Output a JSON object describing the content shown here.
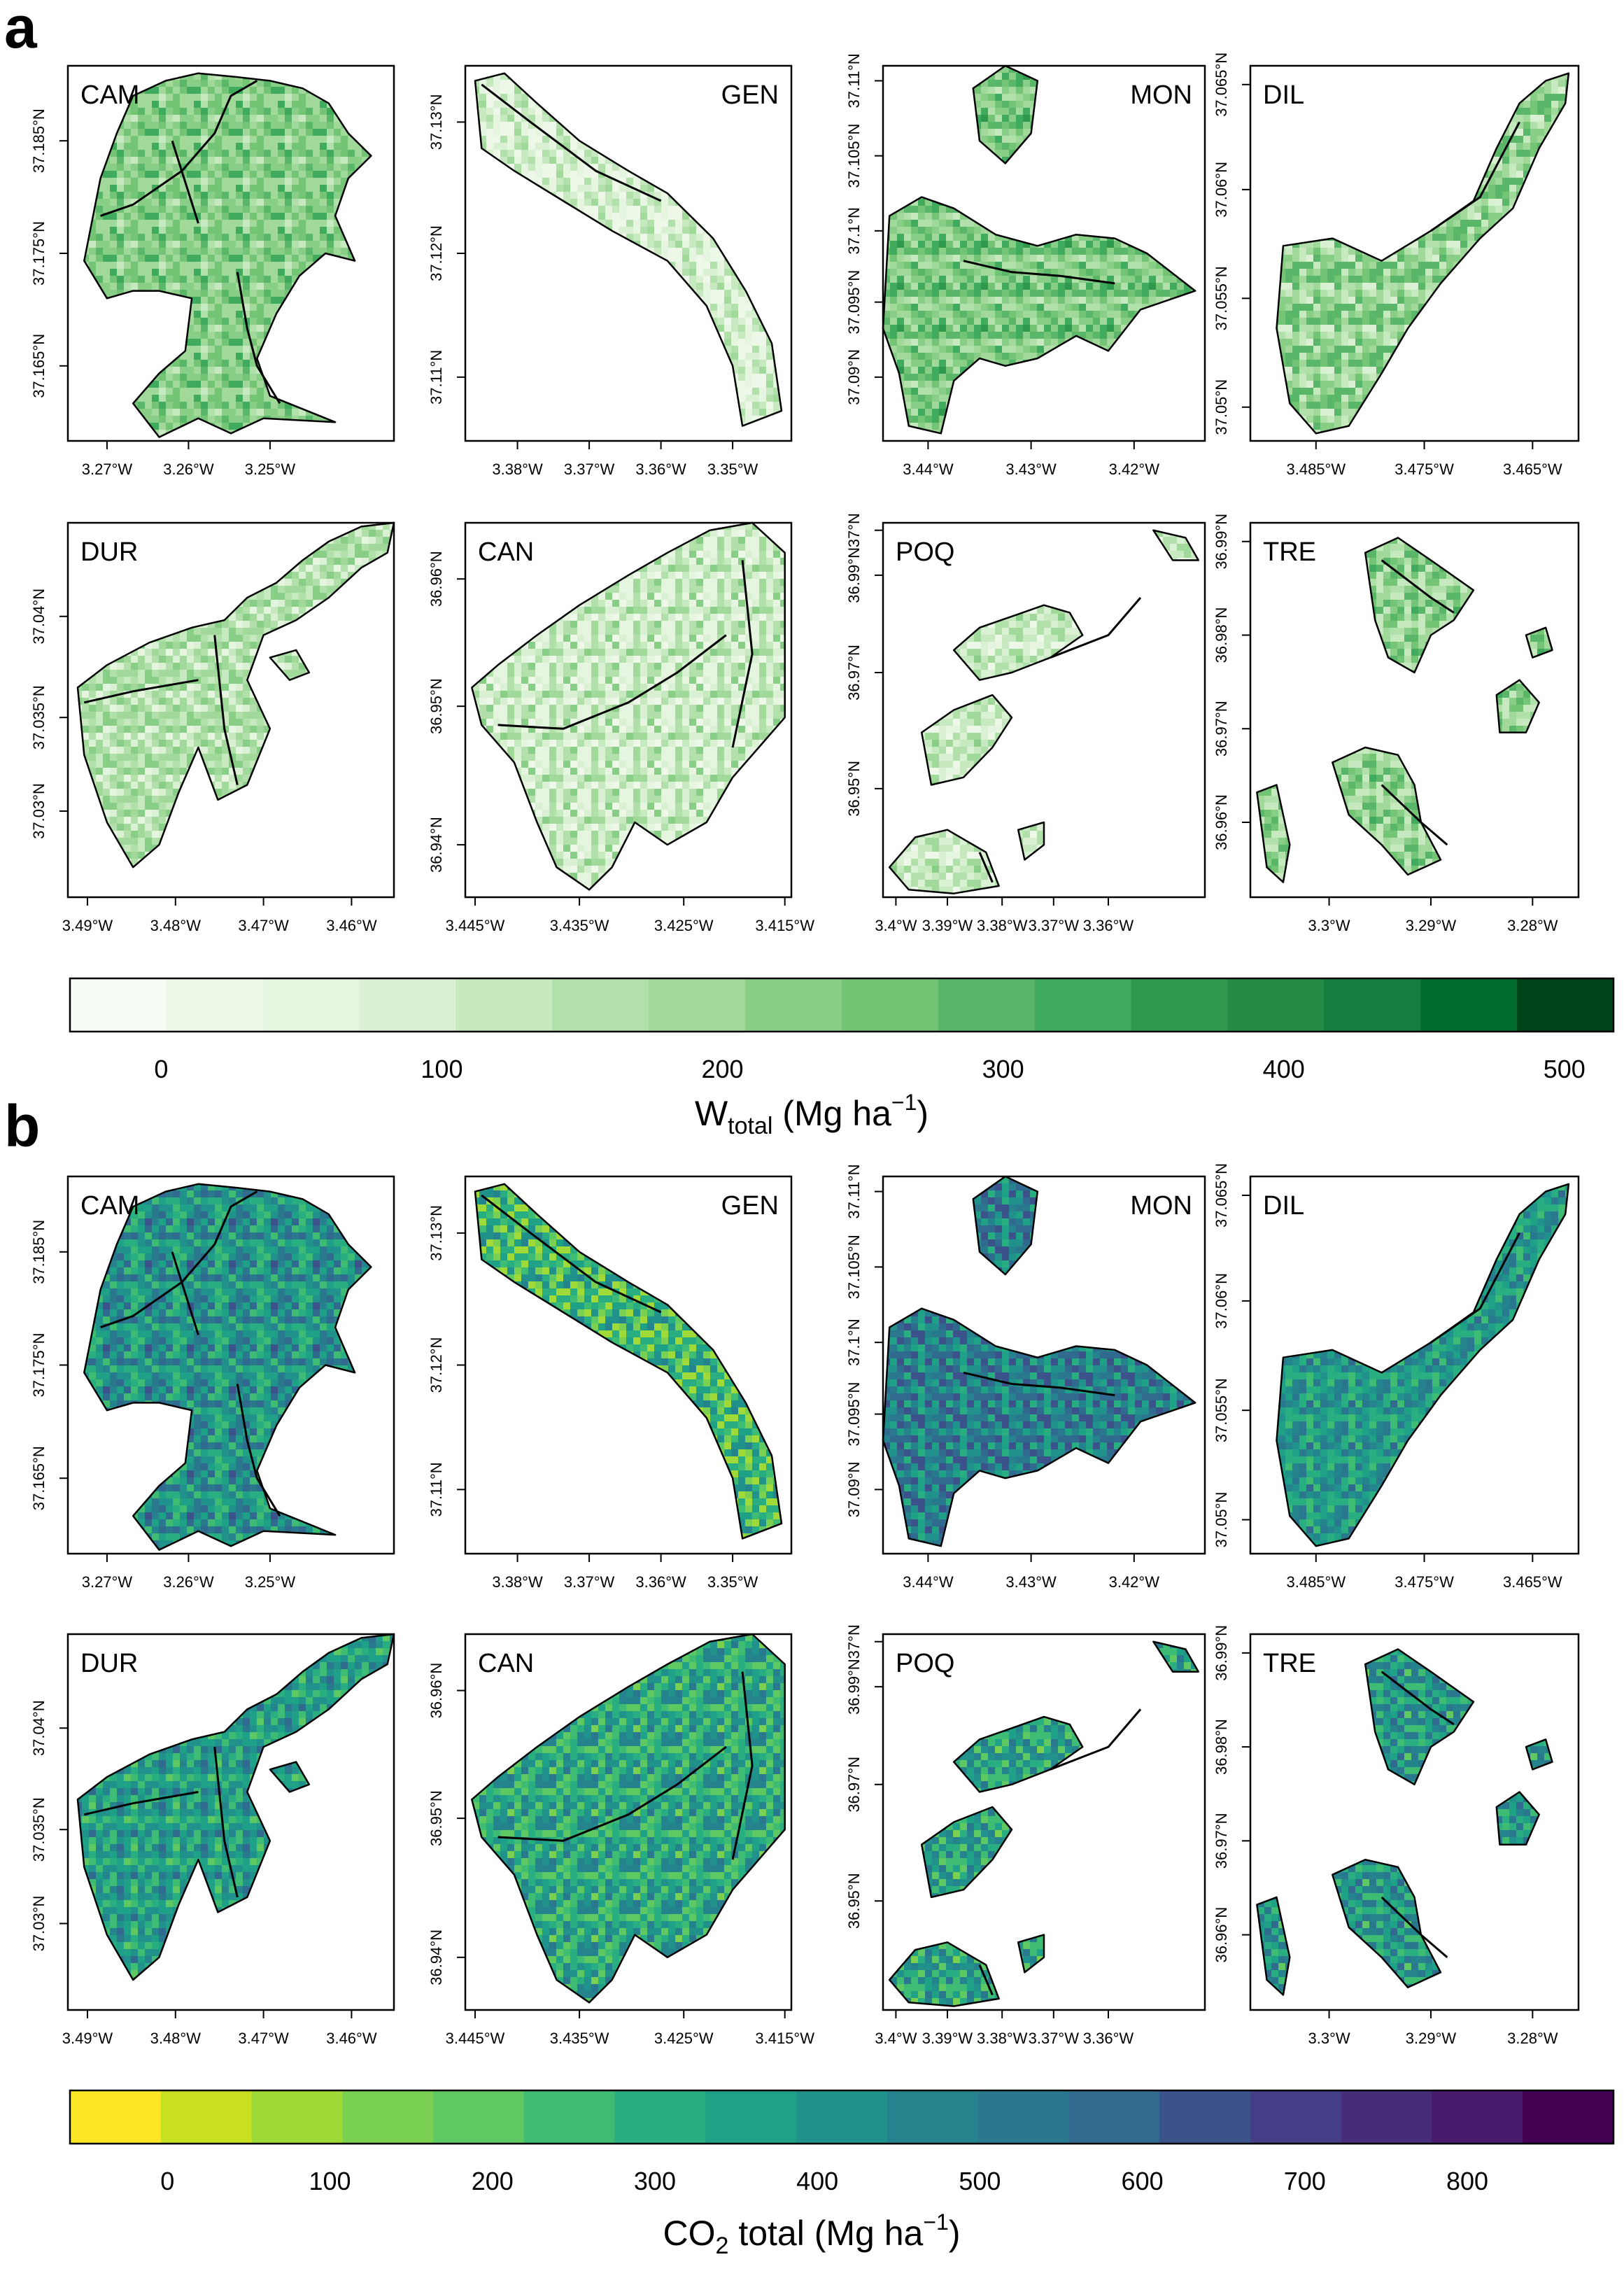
{
  "figure": {
    "panels": [
      {
        "letter": "a",
        "legend": {
          "title_main": "W",
          "title_sub": "total",
          "title_rest": " (Mg ha",
          "title_sup": "−1",
          "title_close": ")",
          "tick_labels": [
            "0",
            "100",
            "200",
            "300",
            "400",
            "500"
          ],
          "tick_values": [
            0,
            100,
            200,
            300,
            400,
            500
          ],
          "range": [
            -32.5,
            517.5
          ],
          "colors": [
            "#f7fcf5",
            "#edf8e9",
            "#e5f5e0",
            "#d9f0d3",
            "#c7e9c0",
            "#b2e0ab",
            "#a1d99b",
            "#88ce87",
            "#74c476",
            "#5ab769",
            "#41ab5d",
            "#2f9a4e",
            "#238b45",
            "#137e3d",
            "#006d2c",
            "#00441b"
          ]
        }
      },
      {
        "letter": "b",
        "legend": {
          "title_main": "CO",
          "title_sub": "2",
          "title_rest": " total (Mg ha",
          "title_sup": "−1",
          "title_close": ")",
          "tick_labels": [
            "0",
            "100",
            "200",
            "300",
            "400",
            "500",
            "600",
            "700",
            "800"
          ],
          "tick_values": [
            0,
            100,
            200,
            300,
            400,
            500,
            600,
            700,
            800
          ],
          "range": [
            -60,
            890
          ],
          "colors": [
            "#fde725",
            "#c8e020",
            "#a0da39",
            "#7ad151",
            "#5ec962",
            "#3fbc73",
            "#28ae80",
            "#1fa188",
            "#21918c",
            "#25838e",
            "#2a788e",
            "#306a8e",
            "#3b528b",
            "#433e85",
            "#472c7a",
            "#481a6c",
            "#440154"
          ]
        }
      }
    ],
    "maps": [
      {
        "site": "CAM",
        "xlabels": [
          "3.27°W",
          "3.26°W",
          "3.25°W"
        ],
        "ylabels": [
          "37.185°N",
          "37.175°N",
          "37.165°N"
        ]
      },
      {
        "site": "GEN",
        "xlabels": [
          "3.38°W",
          "3.37°W",
          "3.36°W",
          "3.35°W"
        ],
        "ylabels": [
          "37.13°N",
          "37.12°N",
          "37.11°N"
        ]
      },
      {
        "site": "MON",
        "xlabels": [
          "3.44°W",
          "3.43°W",
          "3.42°W"
        ],
        "ylabels": [
          "37.11°N",
          "37.105°N",
          "37.1°N",
          "37.095°N",
          "37.09°N"
        ]
      },
      {
        "site": "DIL",
        "xlabels": [
          "3.485°W",
          "3.475°W",
          "3.465°W"
        ],
        "ylabels": [
          "37.065°N",
          "37.06°N",
          "37.055°N",
          "37.05°N"
        ]
      },
      {
        "site": "DUR",
        "xlabels": [
          "3.49°W",
          "3.48°W",
          "3.47°W",
          "3.46°W"
        ],
        "ylabels": [
          "37.04°N",
          "37.035°N",
          "37.03°N"
        ]
      },
      {
        "site": "CAN",
        "xlabels": [
          "3.445°W",
          "3.435°W",
          "3.425°W",
          "3.415°W"
        ],
        "ylabels": [
          "36.96°N",
          "36.95°N",
          "36.94°N"
        ]
      },
      {
        "site": "POQ",
        "xlabels": [
          "3.4°W",
          "3.39°W",
          "3.38°W",
          "3.37°W",
          "3.36°W"
        ],
        "ylabels": [
          "37°N",
          "36.99°N",
          "36.97°N",
          "36.95°N"
        ]
      },
      {
        "site": "TRE",
        "xlabels": [
          "3.3°W",
          "3.29°W",
          "3.28°W"
        ],
        "ylabels": [
          "36.99°N",
          "36.98°N",
          "36.97°N",
          "36.96°N"
        ]
      }
    ]
  }
}
